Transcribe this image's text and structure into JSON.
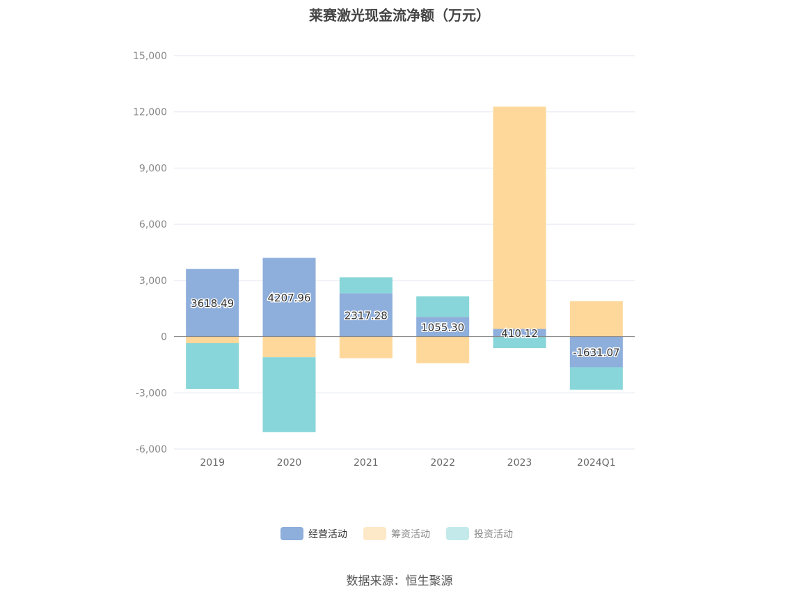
{
  "title": "莱赛激光现金流净额（万元）",
  "source": "数据来源：恒生聚源",
  "colors": {
    "operating": "#8eaedb",
    "financing": "#fed89b",
    "investing": "#88d6d9",
    "financing_legend": "#fde8c8",
    "investing_legend": "#c4e9ea",
    "grid": "#e3e6ef",
    "axis": "#888888"
  },
  "chart_data": {
    "type": "bar",
    "stacked": true,
    "categories": [
      "2019",
      "2020",
      "2021",
      "2022",
      "2023",
      "2024Q1"
    ],
    "series": [
      {
        "name": "经营活动",
        "values": [
          3618.49,
          4207.96,
          2317.28,
          1055.3,
          410.12,
          -1631.07
        ]
      },
      {
        "name": "筹资活动",
        "values": [
          -350,
          -1100,
          -1150,
          -1420,
          11870,
          1900
        ]
      },
      {
        "name": "投资活动",
        "values": [
          -2450,
          -4000,
          850,
          1100,
          -610,
          -1200
        ]
      }
    ],
    "data_labels": [
      "3618.49",
      "4207.96",
      "2317.28",
      "1055.30",
      "410.12",
      "-1631.07"
    ],
    "yticks": [
      "15,000",
      "12,000",
      "9,000",
      "6,000",
      "3,000",
      "0",
      "-3,000",
      "-6,000"
    ],
    "ylim": [
      -6000,
      15000
    ],
    "grid": true,
    "legend_position": "bottom"
  }
}
